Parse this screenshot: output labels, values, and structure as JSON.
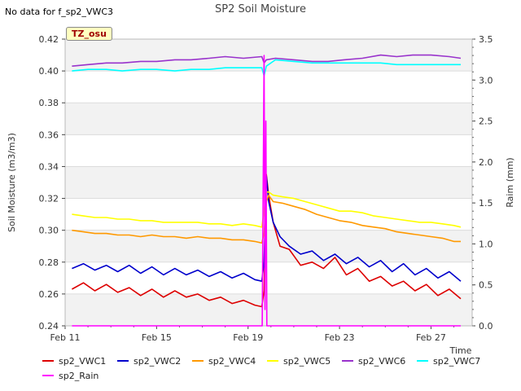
{
  "note": "No data for f_sp2_VWC3",
  "badge": "TZ_osu",
  "chart_data": {
    "type": "line",
    "title": "SP2 Soil Moisture",
    "xlabel": "Time",
    "ylabel": "Soil Moisture (m3/m3)",
    "y2label": "Raim (mm)",
    "x_ticks": [
      "Feb 11",
      "Feb 15",
      "Feb 19",
      "Feb 23",
      "Feb 27"
    ],
    "x_tick_days": [
      11,
      15,
      19,
      23,
      27
    ],
    "xlim": [
      11,
      28.8
    ],
    "ylim": [
      0.24,
      0.42
    ],
    "y_ticks": [
      0.24,
      0.26,
      0.28,
      0.3,
      0.32,
      0.34,
      0.36,
      0.38,
      0.4,
      0.42
    ],
    "y2lim": [
      0.0,
      3.5
    ],
    "y2_ticks": [
      0.0,
      0.5,
      1.0,
      1.5,
      2.0,
      2.5,
      3.0,
      3.5
    ],
    "bands": "alternating light grey horizontal bands",
    "legend_position": "bottom",
    "series": [
      {
        "name": "sp2_VWC1",
        "color": "#dd0000",
        "axis": "left",
        "x": [
          11.3,
          11.8,
          12.3,
          12.8,
          13.3,
          13.8,
          14.3,
          14.8,
          15.3,
          15.8,
          16.3,
          16.8,
          17.3,
          17.8,
          18.3,
          18.8,
          19.3,
          19.6,
          19.7,
          19.8,
          19.9,
          20.1,
          20.4,
          20.8,
          21.3,
          21.8,
          22.3,
          22.8,
          23.3,
          23.8,
          24.3,
          24.8,
          25.3,
          25.8,
          26.3,
          26.8,
          27.3,
          27.8,
          28.3
        ],
        "y": [
          0.263,
          0.267,
          0.262,
          0.266,
          0.261,
          0.264,
          0.259,
          0.263,
          0.258,
          0.262,
          0.258,
          0.26,
          0.256,
          0.258,
          0.254,
          0.256,
          0.253,
          0.252,
          0.262,
          0.335,
          0.322,
          0.305,
          0.29,
          0.288,
          0.278,
          0.28,
          0.276,
          0.283,
          0.272,
          0.276,
          0.268,
          0.271,
          0.265,
          0.268,
          0.262,
          0.266,
          0.259,
          0.263,
          0.257
        ]
      },
      {
        "name": "sp2_VWC2",
        "color": "#0000cc",
        "axis": "left",
        "x": [
          11.3,
          11.8,
          12.3,
          12.8,
          13.3,
          13.8,
          14.3,
          14.8,
          15.3,
          15.8,
          16.3,
          16.8,
          17.3,
          17.8,
          18.3,
          18.8,
          19.3,
          19.6,
          19.7,
          19.8,
          19.9,
          20.1,
          20.4,
          20.8,
          21.3,
          21.8,
          22.3,
          22.8,
          23.3,
          23.8,
          24.3,
          24.8,
          25.3,
          25.8,
          26.3,
          26.8,
          27.3,
          27.8,
          28.3
        ],
        "y": [
          0.276,
          0.279,
          0.275,
          0.278,
          0.274,
          0.278,
          0.273,
          0.277,
          0.272,
          0.276,
          0.272,
          0.275,
          0.271,
          0.274,
          0.27,
          0.273,
          0.269,
          0.268,
          0.28,
          0.334,
          0.318,
          0.305,
          0.296,
          0.29,
          0.285,
          0.287,
          0.281,
          0.285,
          0.279,
          0.283,
          0.277,
          0.281,
          0.274,
          0.279,
          0.272,
          0.276,
          0.27,
          0.274,
          0.268
        ]
      },
      {
        "name": "sp2_VWC4",
        "color": "#ff9900",
        "axis": "left",
        "x": [
          11.3,
          11.8,
          12.3,
          12.8,
          13.3,
          13.8,
          14.3,
          14.8,
          15.3,
          15.8,
          16.3,
          16.8,
          17.3,
          17.8,
          18.3,
          18.8,
          19.3,
          19.6,
          19.7,
          19.8,
          19.9,
          20.1,
          20.5,
          21.0,
          21.5,
          22.0,
          22.5,
          23.0,
          23.5,
          24.0,
          24.5,
          25.0,
          25.5,
          26.0,
          26.5,
          27.0,
          27.5,
          28.0,
          28.3
        ],
        "y": [
          0.3,
          0.299,
          0.298,
          0.298,
          0.297,
          0.297,
          0.296,
          0.297,
          0.296,
          0.296,
          0.295,
          0.296,
          0.295,
          0.295,
          0.294,
          0.294,
          0.293,
          0.292,
          0.298,
          0.318,
          0.322,
          0.318,
          0.317,
          0.315,
          0.313,
          0.31,
          0.308,
          0.306,
          0.305,
          0.303,
          0.302,
          0.301,
          0.299,
          0.298,
          0.297,
          0.296,
          0.295,
          0.293,
          0.293
        ]
      },
      {
        "name": "sp2_VWC5",
        "color": "#ffff00",
        "axis": "left",
        "x": [
          11.3,
          11.8,
          12.3,
          12.8,
          13.3,
          13.8,
          14.3,
          14.8,
          15.3,
          15.8,
          16.3,
          16.8,
          17.3,
          17.8,
          18.3,
          18.8,
          19.3,
          19.6,
          19.7,
          19.8,
          19.9,
          20.1,
          20.5,
          21.0,
          21.5,
          22.0,
          22.5,
          23.0,
          23.5,
          24.0,
          24.5,
          25.0,
          25.5,
          26.0,
          26.5,
          27.0,
          27.5,
          28.0,
          28.3
        ],
        "y": [
          0.31,
          0.309,
          0.308,
          0.308,
          0.307,
          0.307,
          0.306,
          0.306,
          0.305,
          0.305,
          0.305,
          0.305,
          0.304,
          0.304,
          0.303,
          0.304,
          0.303,
          0.302,
          0.312,
          0.324,
          0.324,
          0.322,
          0.321,
          0.32,
          0.318,
          0.316,
          0.314,
          0.312,
          0.312,
          0.311,
          0.309,
          0.308,
          0.307,
          0.306,
          0.305,
          0.305,
          0.304,
          0.303,
          0.302
        ]
      },
      {
        "name": "sp2_VWC6",
        "color": "#9933cc",
        "axis": "left",
        "x": [
          11.3,
          12.0,
          12.8,
          13.5,
          14.3,
          15.0,
          15.8,
          16.5,
          17.3,
          18.0,
          18.8,
          19.6,
          19.7,
          19.8,
          20.2,
          21.0,
          21.8,
          22.5,
          23.2,
          24.0,
          24.8,
          25.5,
          26.2,
          27.0,
          27.8,
          28.3
        ],
        "y": [
          0.403,
          0.404,
          0.405,
          0.405,
          0.406,
          0.406,
          0.407,
          0.407,
          0.408,
          0.409,
          0.408,
          0.409,
          0.405,
          0.407,
          0.408,
          0.407,
          0.406,
          0.406,
          0.407,
          0.408,
          0.41,
          0.409,
          0.41,
          0.41,
          0.409,
          0.408
        ]
      },
      {
        "name": "sp2_VWC7",
        "color": "#00ffff",
        "axis": "left",
        "x": [
          11.3,
          12.0,
          12.8,
          13.5,
          14.3,
          15.0,
          15.8,
          16.5,
          17.3,
          18.0,
          18.8,
          19.6,
          19.7,
          19.8,
          20.2,
          21.0,
          21.8,
          22.5,
          23.2,
          24.0,
          24.8,
          25.5,
          26.2,
          27.0,
          27.8,
          28.3
        ],
        "y": [
          0.4,
          0.401,
          0.401,
          0.4,
          0.401,
          0.401,
          0.4,
          0.401,
          0.401,
          0.402,
          0.402,
          0.402,
          0.397,
          0.403,
          0.407,
          0.406,
          0.405,
          0.405,
          0.405,
          0.405,
          0.405,
          0.404,
          0.404,
          0.404,
          0.404,
          0.404
        ]
      },
      {
        "name": "sp2_Rain",
        "color": "#ff00ff",
        "axis": "right",
        "x": [
          11.3,
          19.5,
          19.62,
          19.7,
          19.74,
          19.78,
          19.82,
          19.86,
          19.92,
          28.3
        ],
        "y": [
          0,
          0,
          0,
          3.3,
          0.2,
          2.5,
          0,
          0,
          0,
          0
        ]
      }
    ]
  }
}
